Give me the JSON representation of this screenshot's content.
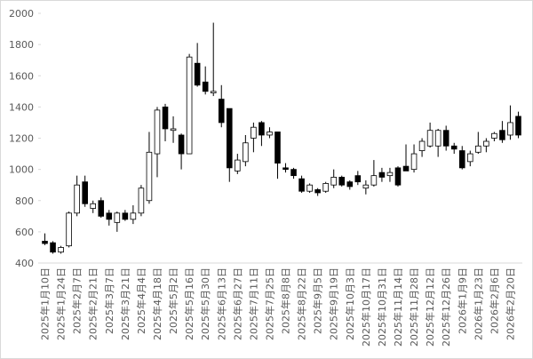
{
  "chart_data": {
    "type": "candlestick",
    "categories": [
      "2025年1月10日",
      null,
      "2025年1月24日",
      null,
      "2025年2月7日",
      null,
      "2025年2月21日",
      null,
      "2025年3月7日",
      null,
      "2025年3月21日",
      null,
      "2025年4月4日",
      null,
      "2025年4月18日",
      null,
      "2025年5月2日",
      null,
      "2025年5月16日",
      null,
      "2025年5月30日",
      null,
      "2025年6月13日",
      null,
      "2025年6月27日",
      null,
      "2025年7月11日",
      null,
      "2025年7月25日",
      null,
      "2025年8月8日",
      null,
      "2025年8月22日",
      null,
      "2025年9月5日",
      null,
      "2025年9月19日",
      null,
      "2025年10月3日",
      null,
      "2025年10月17日",
      null,
      "2025年10月31日",
      null,
      "2025年11月14日",
      null,
      "2025年11月28日",
      null,
      "2025年12月12日",
      null,
      "2025年12月26日",
      null,
      "2026年1月9日",
      null,
      "2026年1月23日",
      null,
      "2026年2月6日",
      null,
      "2026年2月20日",
      null
    ],
    "open": [
      540,
      530,
      470,
      510,
      720,
      920,
      750,
      800,
      720,
      660,
      720,
      680,
      720,
      800,
      1100,
      1400,
      1250,
      1220,
      1100,
      1680,
      1560,
      1490,
      1450,
      1390,
      990,
      1050,
      1200,
      1300,
      1220,
      1240,
      1010,
      1000,
      940,
      860,
      870,
      860,
      900,
      950,
      920,
      960,
      880,
      900,
      980,
      960,
      1010,
      1020,
      1000,
      1120,
      1150,
      1150,
      1250,
      1150,
      1120,
      1050,
      1110,
      1150,
      1200,
      1250,
      1220,
      1340
    ],
    "high": [
      590,
      540,
      510,
      730,
      960,
      960,
      800,
      820,
      740,
      730,
      740,
      770,
      900,
      1240,
      1400,
      1420,
      1340,
      1230,
      1740,
      1810,
      1660,
      1940,
      1540,
      1390,
      1100,
      1220,
      1300,
      1310,
      1270,
      1240,
      1040,
      1010,
      960,
      910,
      880,
      920,
      1000,
      960,
      930,
      990,
      930,
      1060,
      1010,
      1010,
      1020,
      1160,
      1160,
      1200,
      1300,
      1260,
      1280,
      1170,
      1150,
      1120,
      1240,
      1200,
      1240,
      1310,
      1410,
      1370
    ],
    "low": [
      515,
      460,
      460,
      500,
      700,
      760,
      720,
      690,
      640,
      600,
      670,
      650,
      700,
      780,
      950,
      1180,
      1170,
      1000,
      1100,
      1530,
      1480,
      1470,
      1270,
      920,
      970,
      1020,
      1110,
      1150,
      1200,
      940,
      980,
      940,
      850,
      850,
      830,
      850,
      880,
      890,
      870,
      900,
      840,
      890,
      920,
      920,
      890,
      990,
      980,
      1080,
      1140,
      1080,
      1120,
      1100,
      1000,
      1020,
      1100,
      1110,
      1180,
      1170,
      1190,
      1200
    ],
    "close": [
      525,
      470,
      500,
      720,
      900,
      780,
      780,
      700,
      680,
      720,
      680,
      720,
      880,
      1110,
      1380,
      1260,
      1260,
      1100,
      1720,
      1540,
      1500,
      1500,
      1300,
      1010,
      1060,
      1170,
      1270,
      1220,
      1240,
      1040,
      1000,
      960,
      860,
      900,
      850,
      910,
      950,
      900,
      890,
      920,
      900,
      960,
      950,
      980,
      900,
      990,
      1100,
      1180,
      1250,
      1250,
      1150,
      1130,
      1010,
      1100,
      1150,
      1180,
      1230,
      1190,
      1300,
      1220
    ],
    "up_color": "#ffffff",
    "down_color": "#000000",
    "line_color": "#000000",
    "ylim": [
      400,
      2000
    ],
    "yticks": [
      400,
      600,
      800,
      1000,
      1200,
      1400,
      1600,
      1800,
      2000
    ],
    "grid": false
  }
}
